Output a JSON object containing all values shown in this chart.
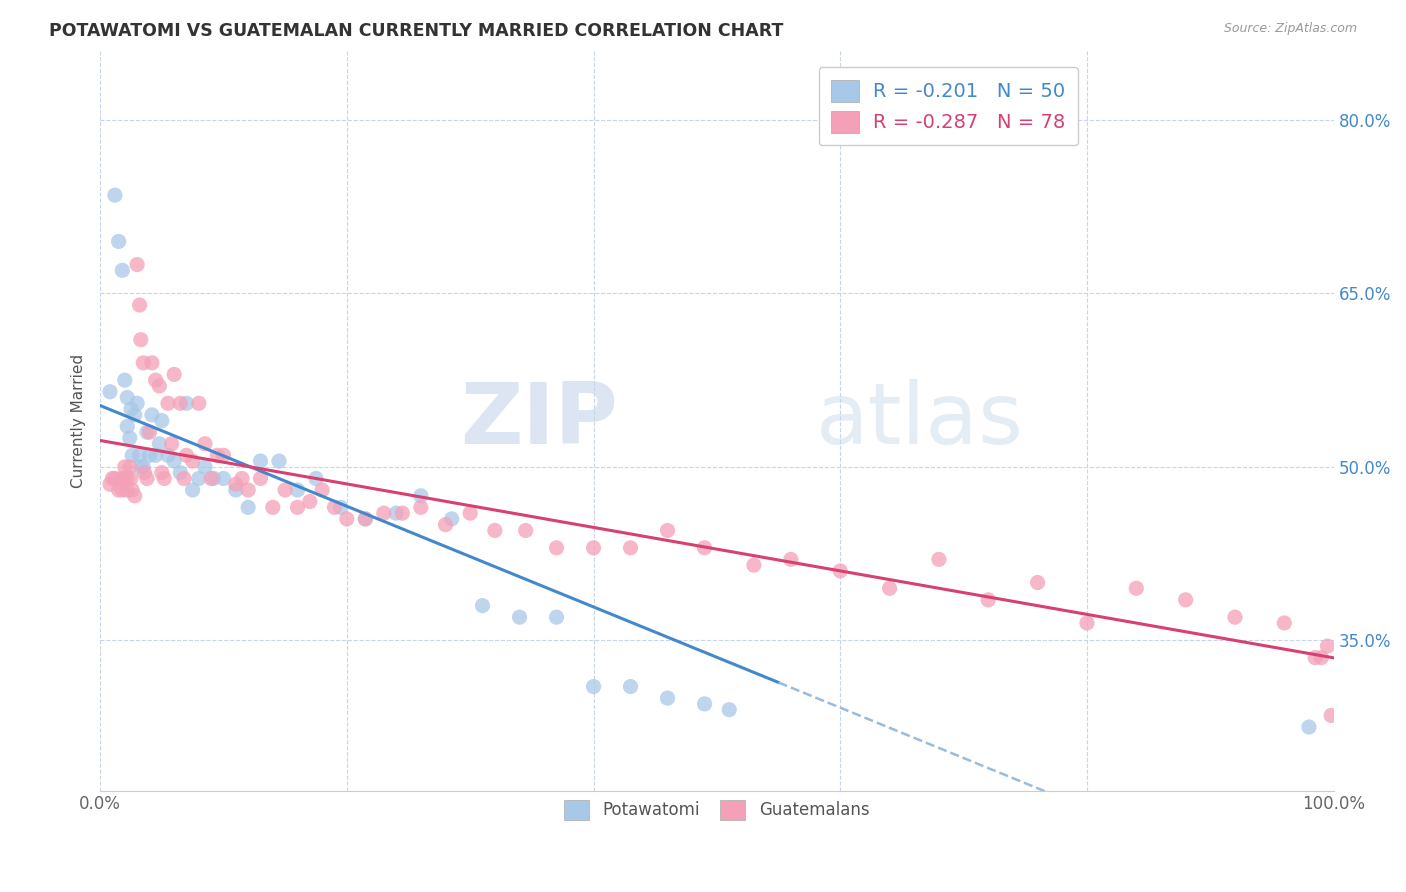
{
  "title": "POTAWATOMI VS GUATEMALAN CURRENTLY MARRIED CORRELATION CHART",
  "source": "Source: ZipAtlas.com",
  "ylabel": "Currently Married",
  "xlim": [
    0.0,
    1.0
  ],
  "ylim": [
    0.22,
    0.86
  ],
  "yticks": [
    0.35,
    0.5,
    0.65,
    0.8
  ],
  "ytick_labels": [
    "35.0%",
    "50.0%",
    "65.0%",
    "80.0%"
  ],
  "xticks": [
    0.0,
    0.2,
    0.4,
    0.6,
    0.8,
    1.0
  ],
  "xtick_labels": [
    "0.0%",
    "",
    "",
    "",
    "",
    "100.0%"
  ],
  "potawatomi_color": "#a8c8e8",
  "guatemalan_color": "#f4a0b8",
  "trend_potawatomi_color": "#4488cc",
  "trend_guatemalan_color": "#d84070",
  "trend_dashed_color": "#99bbdd",
  "R_potawatomi": -0.201,
  "N_potawatomi": 50,
  "R_guatemalan": -0.287,
  "N_guatemalan": 78,
  "watermark_zip": "ZIP",
  "watermark_atlas": "atlas",
  "background_color": "#ffffff",
  "grid_color": "#c8d4e8",
  "potawatomi_x": [
    0.008,
    0.012,
    0.015,
    0.018,
    0.02,
    0.022,
    0.022,
    0.024,
    0.025,
    0.026,
    0.028,
    0.03,
    0.032,
    0.033,
    0.035,
    0.038,
    0.04,
    0.042,
    0.045,
    0.048,
    0.05,
    0.055,
    0.06,
    0.065,
    0.07,
    0.075,
    0.08,
    0.085,
    0.092,
    0.1,
    0.11,
    0.12,
    0.13,
    0.145,
    0.16,
    0.175,
    0.195,
    0.215,
    0.24,
    0.26,
    0.285,
    0.31,
    0.34,
    0.37,
    0.4,
    0.43,
    0.46,
    0.49,
    0.51,
    0.98
  ],
  "potawatomi_y": [
    0.565,
    0.735,
    0.695,
    0.67,
    0.575,
    0.56,
    0.535,
    0.525,
    0.55,
    0.51,
    0.545,
    0.555,
    0.51,
    0.5,
    0.5,
    0.53,
    0.51,
    0.545,
    0.51,
    0.52,
    0.54,
    0.51,
    0.505,
    0.495,
    0.555,
    0.48,
    0.49,
    0.5,
    0.49,
    0.49,
    0.48,
    0.465,
    0.505,
    0.505,
    0.48,
    0.49,
    0.465,
    0.455,
    0.46,
    0.475,
    0.455,
    0.38,
    0.37,
    0.37,
    0.31,
    0.31,
    0.3,
    0.295,
    0.29,
    0.275
  ],
  "guatemalan_x": [
    0.008,
    0.01,
    0.012,
    0.015,
    0.017,
    0.018,
    0.02,
    0.02,
    0.022,
    0.022,
    0.024,
    0.025,
    0.026,
    0.028,
    0.03,
    0.032,
    0.033,
    0.035,
    0.036,
    0.038,
    0.04,
    0.042,
    0.045,
    0.048,
    0.05,
    0.052,
    0.055,
    0.058,
    0.06,
    0.065,
    0.068,
    0.07,
    0.075,
    0.08,
    0.085,
    0.09,
    0.095,
    0.1,
    0.11,
    0.115,
    0.12,
    0.13,
    0.14,
    0.15,
    0.16,
    0.17,
    0.18,
    0.19,
    0.2,
    0.215,
    0.23,
    0.245,
    0.26,
    0.28,
    0.3,
    0.32,
    0.345,
    0.37,
    0.4,
    0.43,
    0.46,
    0.49,
    0.53,
    0.56,
    0.6,
    0.64,
    0.68,
    0.72,
    0.76,
    0.8,
    0.84,
    0.88,
    0.92,
    0.96,
    0.985,
    0.99,
    0.995,
    0.998
  ],
  "guatemalan_y": [
    0.485,
    0.49,
    0.49,
    0.48,
    0.49,
    0.48,
    0.5,
    0.49,
    0.49,
    0.48,
    0.5,
    0.49,
    0.48,
    0.475,
    0.675,
    0.64,
    0.61,
    0.59,
    0.495,
    0.49,
    0.53,
    0.59,
    0.575,
    0.57,
    0.495,
    0.49,
    0.555,
    0.52,
    0.58,
    0.555,
    0.49,
    0.51,
    0.505,
    0.555,
    0.52,
    0.49,
    0.51,
    0.51,
    0.485,
    0.49,
    0.48,
    0.49,
    0.465,
    0.48,
    0.465,
    0.47,
    0.48,
    0.465,
    0.455,
    0.455,
    0.46,
    0.46,
    0.465,
    0.45,
    0.46,
    0.445,
    0.445,
    0.43,
    0.43,
    0.43,
    0.445,
    0.43,
    0.415,
    0.42,
    0.41,
    0.395,
    0.42,
    0.385,
    0.4,
    0.365,
    0.395,
    0.385,
    0.37,
    0.365,
    0.335,
    0.335,
    0.345,
    0.285
  ]
}
